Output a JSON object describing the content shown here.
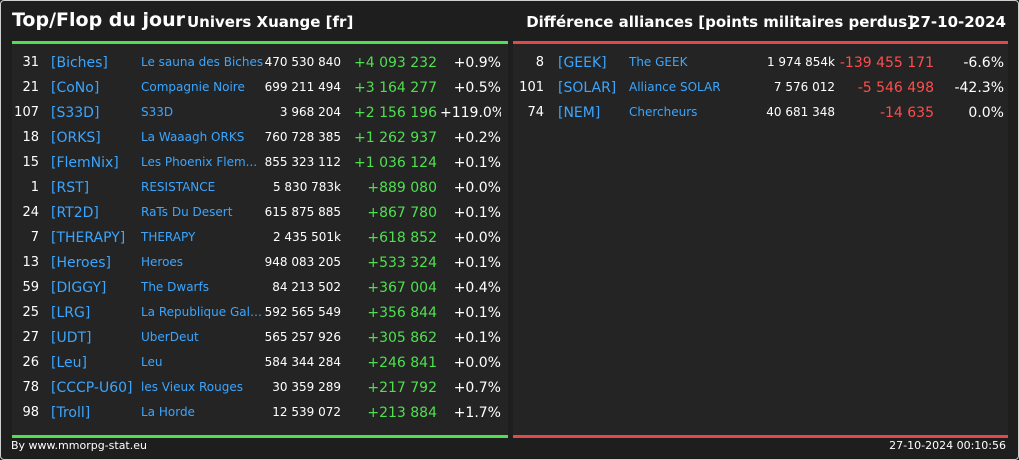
{
  "header": {
    "title": "Top/Flop du jour",
    "universe": "Univers Xuange [fr]",
    "category": "Différence alliances [points militaires perdus]",
    "date": "27-10-2024"
  },
  "colors": {
    "top": "#4ee04e",
    "flop": "#ff4d4d",
    "link": "#3aa6ff"
  },
  "top": [
    {
      "rank": "31",
      "tag": "[Biches]",
      "name": "Le sauna des Biches",
      "points": "470 530 840",
      "diff": "+4 093 232",
      "pct": "+0.9%"
    },
    {
      "rank": "21",
      "tag": "[CoNo]",
      "name": "Compagnie Noire",
      "points": "699 211 494",
      "diff": "+3 164 277",
      "pct": "+0.5%"
    },
    {
      "rank": "107",
      "tag": "[S33D]",
      "name": "S33D",
      "points": "3 968 204",
      "diff": "+2 156 196",
      "pct": "+119.0%"
    },
    {
      "rank": "18",
      "tag": "[ORKS]",
      "name": "La Waaagh ORKS",
      "points": "760 728 385",
      "diff": "+1 262 937",
      "pct": "+0.2%"
    },
    {
      "rank": "15",
      "tag": "[FlemNix]",
      "name": "Les Phoenix Flem...",
      "points": "855 323 112",
      "diff": "+1 036 124",
      "pct": "+0.1%"
    },
    {
      "rank": "1",
      "tag": "[RST]",
      "name": "RESISTANCE",
      "points": "5 830 783k",
      "diff": "+889 080",
      "pct": "+0.0%"
    },
    {
      "rank": "24",
      "tag": "[RT2D]",
      "name": "RaTs Du Desert",
      "points": "615 875 885",
      "diff": "+867 780",
      "pct": "+0.1%"
    },
    {
      "rank": "7",
      "tag": "[THERAPY]",
      "name": "THERAPY",
      "points": "2 435 501k",
      "diff": "+618 852",
      "pct": "+0.0%"
    },
    {
      "rank": "13",
      "tag": "[Heroes]",
      "name": "Heroes",
      "points": "948 083 205",
      "diff": "+533 324",
      "pct": "+0.1%"
    },
    {
      "rank": "59",
      "tag": "[DIGGY]",
      "name": "The Dwarfs",
      "points": "84 213 502",
      "diff": "+367 004",
      "pct": "+0.4%"
    },
    {
      "rank": "25",
      "tag": "[LRG]",
      "name": "La Republique Gala...",
      "points": "592 565 549",
      "diff": "+356 844",
      "pct": "+0.1%"
    },
    {
      "rank": "27",
      "tag": "[UDT]",
      "name": "UberDeut",
      "points": "565 257 926",
      "diff": "+305 862",
      "pct": "+0.1%"
    },
    {
      "rank": "26",
      "tag": "[Leu]",
      "name": "Leu",
      "points": "584 344 284",
      "diff": "+246 841",
      "pct": "+0.0%"
    },
    {
      "rank": "78",
      "tag": "[CCCP-U60]",
      "name": "les Vieux Rouges",
      "points": "30 359 289",
      "diff": "+217 792",
      "pct": "+0.7%"
    },
    {
      "rank": "98",
      "tag": "[Troll]",
      "name": "La Horde",
      "points": "12 539 072",
      "diff": "+213 884",
      "pct": "+1.7%"
    }
  ],
  "flop": [
    {
      "rank": "8",
      "tag": "[GEEK]",
      "name": "The GEEK",
      "points": "1 974 854k",
      "diff": "-139 455 171",
      "pct": "-6.6%"
    },
    {
      "rank": "101",
      "tag": "[SOLAR]",
      "name": "Alliance SOLAR",
      "points": "7 576 012",
      "diff": "-5 546 498",
      "pct": "-42.3%"
    },
    {
      "rank": "74",
      "tag": "[NEM]",
      "name": "Chercheurs",
      "points": "40 681 348",
      "diff": "-14 635",
      "pct": "0.0%"
    }
  ],
  "footer": {
    "source": "By www.mmorpg-stat.eu",
    "timestamp": "27-10-2024 00:10:56"
  }
}
